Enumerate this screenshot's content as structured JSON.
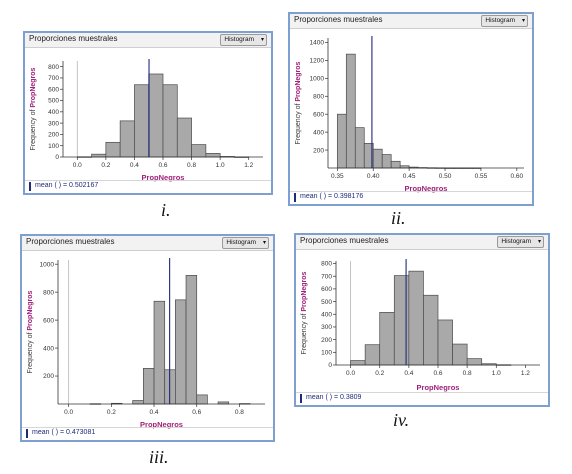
{
  "chart_data": [
    {
      "type": "bar",
      "title": "Proporciones muestrales",
      "dropdown": "Histogram",
      "xlabel": "PropNegros",
      "ylabel": "Frequency of PropNegros",
      "xlim": [
        -0.1,
        1.3
      ],
      "ylim": [
        0,
        850
      ],
      "xticks": [
        0.0,
        0.2,
        0.4,
        0.6,
        0.8,
        1.0,
        1.2
      ],
      "xtick_labels": [
        "0.0",
        "0.2",
        "0.4",
        "0.6",
        "0.8",
        "1.0",
        "1.2"
      ],
      "yticks": [
        0,
        100,
        200,
        300,
        400,
        500,
        600,
        700,
        800
      ],
      "ytick_labels": [
        "0",
        "100",
        "200",
        "300",
        "400",
        "500",
        "600",
        "700",
        "800"
      ],
      "bin_width": 0.1,
      "bin_starts": [
        0.0,
        0.1,
        0.2,
        0.3,
        0.4,
        0.5,
        0.6,
        0.7,
        0.8,
        0.9,
        1.0,
        1.1
      ],
      "values": [
        2,
        25,
        130,
        320,
        640,
        735,
        640,
        345,
        110,
        32,
        5,
        1
      ],
      "mean": 0.502167,
      "mean_label": "mean (  ) = 0.502167",
      "caption": "i."
    },
    {
      "type": "bar",
      "title": "Proporciones muestrales",
      "dropdown": "Histogram",
      "xlabel": "PropNegros",
      "ylabel": "Frequency of PropNegros",
      "xlim": [
        0.337,
        0.61
      ],
      "ylim": [
        0,
        1450
      ],
      "xticks": [
        0.35,
        0.4,
        0.45,
        0.5,
        0.55,
        0.6
      ],
      "xtick_labels": [
        "0.35",
        "0.40",
        "0.45",
        "0.50",
        "0.55",
        "0.60"
      ],
      "yticks": [
        200,
        400,
        600,
        800,
        1000,
        1200,
        1400
      ],
      "ytick_labels": [
        "200",
        "400",
        "600",
        "800",
        "1000",
        "1200",
        "1400"
      ],
      "bin_width": 0.0125,
      "bin_starts": [
        0.35,
        0.3625,
        0.375,
        0.3875,
        0.4,
        0.4125,
        0.425,
        0.4375,
        0.45,
        0.4625,
        0.475,
        0.4875,
        0.5,
        0.5125,
        0.525,
        0.5375
      ],
      "values": [
        600,
        1270,
        450,
        275,
        210,
        150,
        75,
        25,
        10,
        5,
        3,
        2,
        1,
        1,
        1,
        1
      ],
      "mean": 0.398176,
      "mean_label": "mean (  ) = 0.398176",
      "caption": "ii."
    },
    {
      "type": "bar",
      "title": "Proporciones muestrales",
      "dropdown": "Histogram",
      "xlabel": "PropNegros",
      "ylabel": "Frequency of PropNegros",
      "xlim": [
        -0.05,
        0.92
      ],
      "ylim": [
        0,
        1030
      ],
      "xticks": [
        0.0,
        0.2,
        0.4,
        0.6,
        0.8
      ],
      "xtick_labels": [
        "0.0",
        "0.2",
        "0.4",
        "0.6",
        "0.8"
      ],
      "yticks": [
        200,
        400,
        600,
        800,
        1000
      ],
      "ytick_labels": [
        "200",
        "400",
        "600",
        "800",
        "1000"
      ],
      "bin_width": 0.05,
      "bin_starts": [
        0.1,
        0.2,
        0.3,
        0.35,
        0.4,
        0.45,
        0.5,
        0.55,
        0.6,
        0.7,
        0.8
      ],
      "values": [
        2,
        5,
        25,
        255,
        735,
        245,
        745,
        920,
        65,
        15,
        3
      ],
      "mean": 0.473081,
      "mean_label": "mean (  ) = 0.473081",
      "caption": "iii."
    },
    {
      "type": "bar",
      "title": "Proporciones muestrales",
      "dropdown": "Histogram",
      "xlabel": "PropNegros",
      "ylabel": "Frequency of PropNegros",
      "xlim": [
        -0.1,
        1.3
      ],
      "ylim": [
        0,
        820
      ],
      "xticks": [
        0.0,
        0.2,
        0.4,
        0.6,
        0.8,
        1.0,
        1.2
      ],
      "xtick_labels": [
        "0.0",
        "0.2",
        "0.4",
        "0.6",
        "0.8",
        "1.0",
        "1.2"
      ],
      "yticks": [
        0,
        100,
        200,
        300,
        400,
        500,
        600,
        700,
        800
      ],
      "ytick_labels": [
        "0",
        "100",
        "200",
        "300",
        "400",
        "500",
        "600",
        "700",
        "800"
      ],
      "bin_width": 0.1,
      "bin_starts": [
        0.0,
        0.1,
        0.2,
        0.3,
        0.4,
        0.5,
        0.6,
        0.7,
        0.8,
        0.9,
        1.0
      ],
      "values": [
        35,
        160,
        415,
        705,
        740,
        550,
        355,
        165,
        50,
        10,
        2
      ],
      "mean": 0.3809,
      "mean_label": "mean (  ) = 0.3809",
      "caption": "iv."
    }
  ]
}
